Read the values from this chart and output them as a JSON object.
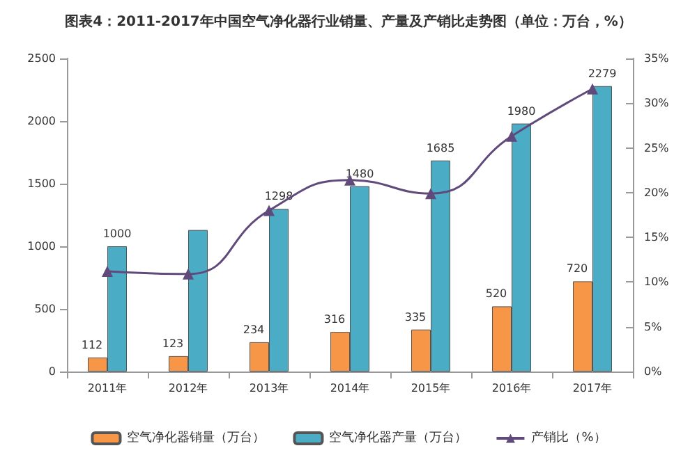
{
  "chart_data": {
    "type": "bar",
    "title": "图表4：2011-2017年中国空气净化器行业销量、产量及产销比走势图（单位：万台，%）",
    "categories": [
      "2011年",
      "2012年",
      "2013年",
      "2014年",
      "2015年",
      "2016年",
      "2017年"
    ],
    "series": [
      {
        "name": "空气净化器销量（万台）",
        "color": "#f79646",
        "values": [
          112,
          123,
          234,
          316,
          335,
          520,
          720
        ],
        "value_labels": [
          "112",
          "123",
          "234",
          "316",
          "335",
          "520",
          "720"
        ]
      },
      {
        "name": "空气净化器产量（万台）",
        "color": "#4bacc6",
        "values": [
          1000,
          1130,
          1298,
          1480,
          1685,
          1980,
          2279
        ],
        "value_labels": [
          "1000",
          null,
          "1298",
          "1480",
          "1685",
          "1980",
          "2279"
        ]
      },
      {
        "name": "产销比（%）",
        "type": "line",
        "axis": "y2",
        "color": "#604a7b",
        "marker": "triangle",
        "values": [
          11.2,
          10.9,
          18.0,
          21.4,
          19.9,
          26.3,
          31.6
        ]
      }
    ],
    "ylim": [
      0,
      2500
    ],
    "yticks": [
      0,
      500,
      1000,
      1500,
      2000,
      2500
    ],
    "y2lim": [
      0,
      35
    ],
    "y2ticks": [
      {
        "value": 0,
        "label": "0%"
      },
      {
        "value": 5,
        "label": "5%"
      },
      {
        "value": 10,
        "label": "10%"
      },
      {
        "value": 15,
        "label": "15%"
      },
      {
        "value": 20,
        "label": "20%"
      },
      {
        "value": 25,
        "label": "25%"
      },
      {
        "value": 30,
        "label": "30%"
      },
      {
        "value": 35,
        "label": "35%"
      }
    ],
    "grid": false,
    "legend": "bottom"
  }
}
